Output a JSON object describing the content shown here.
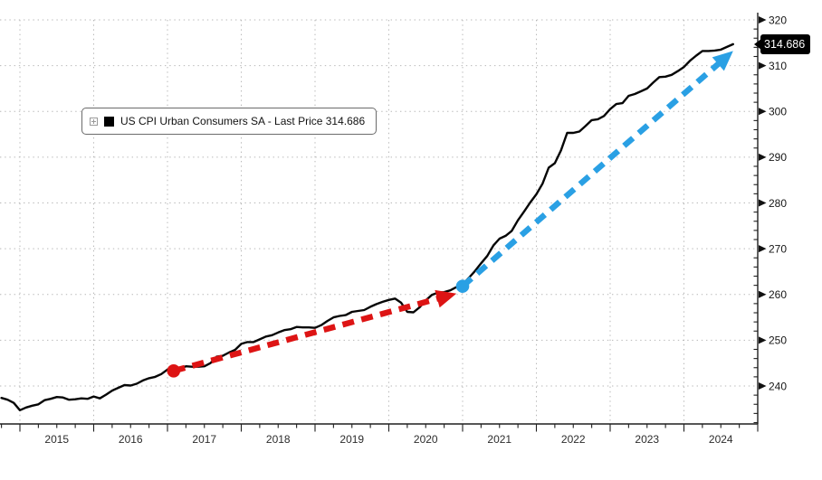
{
  "chart_data": {
    "type": "line",
    "title": "",
    "legend_label": "US CPI Urban Consumers SA - Last Price 314.686",
    "last_price": "314.686",
    "grid": "dotted",
    "legend_position": "upper-left-inside",
    "background_color": "#ffffff",
    "series": [
      {
        "name": "US CPI Urban Consumers SA",
        "color": "#060606",
        "frequency": "monthly",
        "start_month": "2014-10",
        "values": [
          237.4,
          237.0,
          236.3,
          234.7,
          235.3,
          235.7,
          236.0,
          236.9,
          237.2,
          237.6,
          237.5,
          237.0,
          237.1,
          237.3,
          237.2,
          237.7,
          237.3,
          238.1,
          239.0,
          239.6,
          240.2,
          240.1,
          240.5,
          241.2,
          241.7,
          242.0,
          242.6,
          243.6,
          243.9,
          243.8,
          244.3,
          244.2,
          244.2,
          244.3,
          245.0,
          246.4,
          246.6,
          247.3,
          247.9,
          249.2,
          249.6,
          249.6,
          250.2,
          250.8,
          251.1,
          251.7,
          252.2,
          252.4,
          252.9,
          252.8,
          252.8,
          252.7,
          253.3,
          254.2,
          255.0,
          255.3,
          255.5,
          256.2,
          256.4,
          256.6,
          257.3,
          257.9,
          258.4,
          258.8,
          259.1,
          258.2,
          256.2,
          256.1,
          257.2,
          258.7,
          259.9,
          260.4,
          260.5,
          260.9,
          261.6,
          262.2,
          263.6,
          265.1,
          266.8,
          268.4,
          270.7,
          272.2,
          272.8,
          273.9,
          276.2,
          278.1,
          280.1,
          281.9,
          284.2,
          287.7,
          288.7,
          291.5,
          295.3,
          295.3,
          295.6,
          296.8,
          298.1,
          298.3,
          299.0,
          300.5,
          301.6,
          301.8,
          303.4,
          303.8,
          304.4,
          305.0,
          306.3,
          307.5,
          307.6,
          308.0,
          308.8,
          309.7,
          311.1,
          312.2,
          313.2,
          313.2,
          313.3,
          313.5,
          314.1,
          314.686
        ]
      }
    ],
    "x_axis": {
      "tick_labels": [
        "2015",
        "2016",
        "2017",
        "2018",
        "2019",
        "2020",
        "2021",
        "2022",
        "2023",
        "2024"
      ],
      "minor_ticks": "quarterly"
    },
    "y_axis": {
      "side": "right",
      "ticks": [
        240,
        250,
        260,
        270,
        280,
        290,
        300,
        310,
        320
      ],
      "minor_step": 2,
      "range": [
        231.6,
        321.6
      ]
    },
    "annotations": [
      {
        "id": "pre-covid-trend-arrow",
        "type": "dashed-arrow",
        "color": "#dd1414",
        "from": {
          "month": "2017-02",
          "value": 243.3
        },
        "to": {
          "month": "2020-12",
          "value": 260.2
        }
      },
      {
        "id": "post-covid-trend-arrow",
        "type": "dashed-arrow",
        "color": "#2aa0e4",
        "from": {
          "month": "2021-01",
          "value": 261.8
        },
        "to": {
          "month": "2024-09",
          "value": 313.2
        }
      }
    ]
  }
}
